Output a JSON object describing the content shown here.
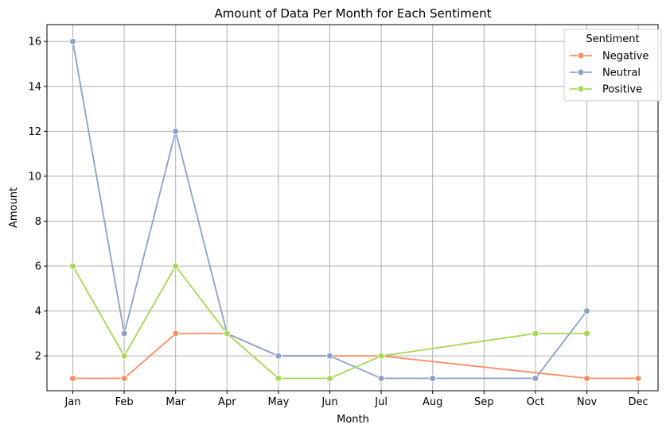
{
  "chart_data": {
    "type": "line",
    "title": "Amount of Data Per Month for Each Sentiment",
    "xlabel": "Month",
    "ylabel": "Amount",
    "categories": [
      "Jan",
      "Feb",
      "Mar",
      "Apr",
      "May",
      "Jun",
      "Jul",
      "Aug",
      "Sep",
      "Oct",
      "Nov",
      "Dec"
    ],
    "ylim": [
      0.45,
      16.75
    ],
    "yticks": [
      2,
      4,
      6,
      8,
      10,
      12,
      14,
      16
    ],
    "grid": true,
    "legend": {
      "title": "Sentiment",
      "position": "top-right"
    },
    "series": [
      {
        "name": "Negative",
        "color": "#fc8d62",
        "points": [
          [
            "Jan",
            1
          ],
          [
            "Feb",
            1
          ],
          [
            "Mar",
            3
          ],
          [
            "Apr",
            3
          ],
          [
            "May",
            2
          ],
          [
            "Jun",
            2
          ],
          [
            "Jul",
            2
          ],
          [
            "Nov",
            1
          ],
          [
            "Dec",
            1
          ]
        ]
      },
      {
        "name": "Neutral",
        "color": "#8da0cb",
        "points": [
          [
            "Jan",
            16
          ],
          [
            "Feb",
            3
          ],
          [
            "Mar",
            12
          ],
          [
            "Apr",
            3
          ],
          [
            "May",
            2
          ],
          [
            "Jun",
            2
          ],
          [
            "Jul",
            1
          ],
          [
            "Aug",
            1
          ],
          [
            "Oct",
            1
          ],
          [
            "Nov",
            4
          ]
        ]
      },
      {
        "name": "Positive",
        "color": "#a6d854",
        "points": [
          [
            "Jan",
            6
          ],
          [
            "Feb",
            2
          ],
          [
            "Mar",
            6
          ],
          [
            "Apr",
            3
          ],
          [
            "May",
            1
          ],
          [
            "Jun",
            1
          ],
          [
            "Jul",
            2
          ],
          [
            "Oct",
            3
          ],
          [
            "Nov",
            3
          ]
        ]
      }
    ]
  }
}
